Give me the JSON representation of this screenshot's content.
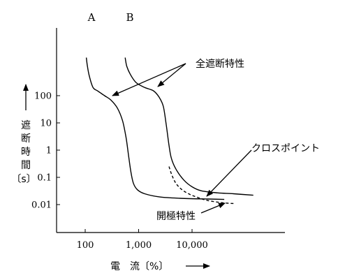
{
  "chart_data": {
    "type": "line",
    "x_scale": "log",
    "y_scale": "log",
    "xlim": [
      60,
      200000
    ],
    "ylim": [
      0.005,
      10000
    ],
    "x_ticks": [
      100,
      1000,
      10000
    ],
    "x_tick_labels": [
      "100",
      "1,000",
      "10,000"
    ],
    "y_ticks": [
      100,
      10,
      1,
      0.1,
      0.01
    ],
    "y_tick_labels": [
      "100",
      "10",
      "1",
      "0.1",
      "0.01"
    ],
    "xlabel": "電　流〔%〕",
    "ylabel_chars": [
      "遮",
      "断",
      "時",
      "間"
    ],
    "ylabel_unit": "〔s〕",
    "grid": false,
    "series": [
      {
        "name": "A",
        "style": "solid",
        "points": [
          [
            105,
            2500
          ],
          [
            110,
            1200
          ],
          [
            120,
            500
          ],
          [
            140,
            200
          ],
          [
            170,
            150
          ],
          [
            230,
            100
          ],
          [
            300,
            70
          ],
          [
            400,
            35
          ],
          [
            500,
            12
          ],
          [
            580,
            3
          ],
          [
            650,
            0.6
          ],
          [
            720,
            0.15
          ],
          [
            800,
            0.06
          ],
          [
            950,
            0.035
          ],
          [
            1300,
            0.025
          ],
          [
            2500,
            0.019
          ],
          [
            6000,
            0.017
          ],
          [
            20000,
            0.016
          ],
          [
            40000,
            0.0155
          ]
        ]
      },
      {
        "name": "B",
        "style": "solid",
        "points": [
          [
            560,
            2500
          ],
          [
            600,
            1200
          ],
          [
            700,
            600
          ],
          [
            900,
            300
          ],
          [
            1300,
            200
          ],
          [
            1900,
            150
          ],
          [
            2400,
            90
          ],
          [
            2900,
            40
          ],
          [
            3300,
            8
          ],
          [
            3700,
            1.5
          ],
          [
            4100,
            0.5
          ],
          [
            5000,
            0.2
          ],
          [
            7000,
            0.08
          ],
          [
            10000,
            0.045
          ],
          [
            15000,
            0.032
          ],
          [
            30000,
            0.027
          ],
          [
            60000,
            0.025
          ],
          [
            140000,
            0.022
          ]
        ]
      },
      {
        "name": "開極特性",
        "style": "dashed",
        "points": [
          [
            3700,
            0.25
          ],
          [
            4200,
            0.12
          ],
          [
            5000,
            0.06
          ],
          [
            6500,
            0.035
          ],
          [
            9000,
            0.024
          ],
          [
            13000,
            0.018
          ],
          [
            20000,
            0.014
          ],
          [
            40000,
            0.0115
          ],
          [
            60000,
            0.011
          ]
        ]
      }
    ],
    "curve_labels": [
      "A",
      "B"
    ],
    "annotations": {
      "total_interrupt": "全遮断特性",
      "crosspoint": "クロスポイント",
      "opening": "開極特性"
    }
  }
}
